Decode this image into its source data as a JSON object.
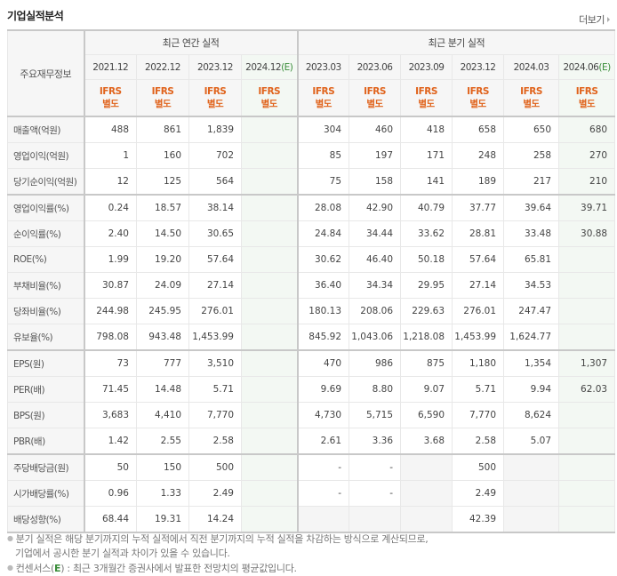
{
  "header": {
    "title": "기업실적분석",
    "more_label": "더보기"
  },
  "table": {
    "label_header": "주요재무정보",
    "group_annual": "최근 연간 실적",
    "group_quarterly": "최근 분기 실적",
    "accounting_line1": "IFRS",
    "accounting_line2": "별도",
    "estimate_mark": "(E)",
    "annual_periods": [
      "2021.12",
      "2022.12",
      "2023.12",
      "2024.12"
    ],
    "quarterly_periods": [
      "2023.03",
      "2023.06",
      "2023.09",
      "2023.12",
      "2024.03",
      "2024.06"
    ],
    "rows": [
      {
        "label": "매출액(억원)",
        "values": [
          "488",
          "861",
          "1,839",
          "",
          "304",
          "460",
          "418",
          "658",
          "650",
          "680"
        ]
      },
      {
        "label": "영업이익(억원)",
        "values": [
          "1",
          "160",
          "702",
          "",
          "85",
          "197",
          "171",
          "248",
          "258",
          "270"
        ]
      },
      {
        "label": "당기순이익(억원)",
        "values": [
          "12",
          "125",
          "564",
          "",
          "75",
          "158",
          "141",
          "189",
          "217",
          "210"
        ]
      },
      {
        "label": "영업이익률(%)",
        "values": [
          "0.24",
          "18.57",
          "38.14",
          "",
          "28.08",
          "42.90",
          "40.79",
          "37.77",
          "39.64",
          "39.71"
        ]
      },
      {
        "label": "순이익률(%)",
        "values": [
          "2.40",
          "14.50",
          "30.65",
          "",
          "24.84",
          "34.44",
          "33.62",
          "28.81",
          "33.48",
          "30.88"
        ]
      },
      {
        "label": "ROE(%)",
        "values": [
          "1.99",
          "19.20",
          "57.64",
          "",
          "30.62",
          "46.40",
          "50.18",
          "57.64",
          "65.81",
          ""
        ]
      },
      {
        "label": "부채비율(%)",
        "values": [
          "30.87",
          "24.09",
          "27.14",
          "",
          "36.40",
          "34.34",
          "29.95",
          "27.14",
          "34.53",
          ""
        ]
      },
      {
        "label": "당좌비율(%)",
        "values": [
          "244.98",
          "245.95",
          "276.01",
          "",
          "180.13",
          "208.06",
          "229.63",
          "276.01",
          "247.47",
          ""
        ]
      },
      {
        "label": "유보율(%)",
        "values": [
          "798.08",
          "943.48",
          "1,453.99",
          "",
          "845.92",
          "1,043.06",
          "1,218.08",
          "1,453.99",
          "1,624.77",
          ""
        ]
      },
      {
        "label": "EPS(원)",
        "values": [
          "73",
          "777",
          "3,510",
          "",
          "470",
          "986",
          "875",
          "1,180",
          "1,354",
          "1,307"
        ]
      },
      {
        "label": "PER(배)",
        "values": [
          "71.45",
          "14.48",
          "5.71",
          "",
          "9.69",
          "8.80",
          "9.07",
          "5.71",
          "9.94",
          "62.03"
        ]
      },
      {
        "label": "BPS(원)",
        "values": [
          "3,683",
          "4,410",
          "7,770",
          "",
          "4,730",
          "5,715",
          "6,590",
          "7,770",
          "8,624",
          ""
        ]
      },
      {
        "label": "PBR(배)",
        "values": [
          "1.42",
          "2.55",
          "2.58",
          "",
          "2.61",
          "3.36",
          "3.68",
          "2.58",
          "5.07",
          ""
        ]
      },
      {
        "label": "주당배당금(원)",
        "values": [
          "50",
          "150",
          "500",
          "",
          "-",
          "-",
          "",
          "500",
          "",
          ""
        ]
      },
      {
        "label": "시가배당률(%)",
        "values": [
          "0.96",
          "1.33",
          "2.49",
          "",
          "-",
          "-",
          "",
          "2.49",
          "",
          ""
        ]
      },
      {
        "label": "배당성향(%)",
        "values": [
          "68.44",
          "19.31",
          "14.24",
          "",
          "",
          "",
          "",
          "42.39",
          "",
          ""
        ]
      }
    ]
  },
  "notes": {
    "line1": "분기 실적은 해당 분기까지의 누적 실적에서 직전 분기까지의 누적 실적을 차감하는 방식으로 계산되므로,",
    "line2": "기업에서 공시한 분기 실적과 차이가 있을 수 있습니다.",
    "line3_prefix": "컨센서스(",
    "line3_mark": "E",
    "line3_suffix": ") : 최근 3개월간 증권사에서 발표한 전망치의 평균값입니다."
  },
  "colors": {
    "accounting_text": "#e0631c",
    "estimate_text": "#3a8d3a",
    "estimate_bg": "#f3f8f3",
    "header_bg": "#f6f6f6",
    "border_strong": "#c8c8c8"
  }
}
